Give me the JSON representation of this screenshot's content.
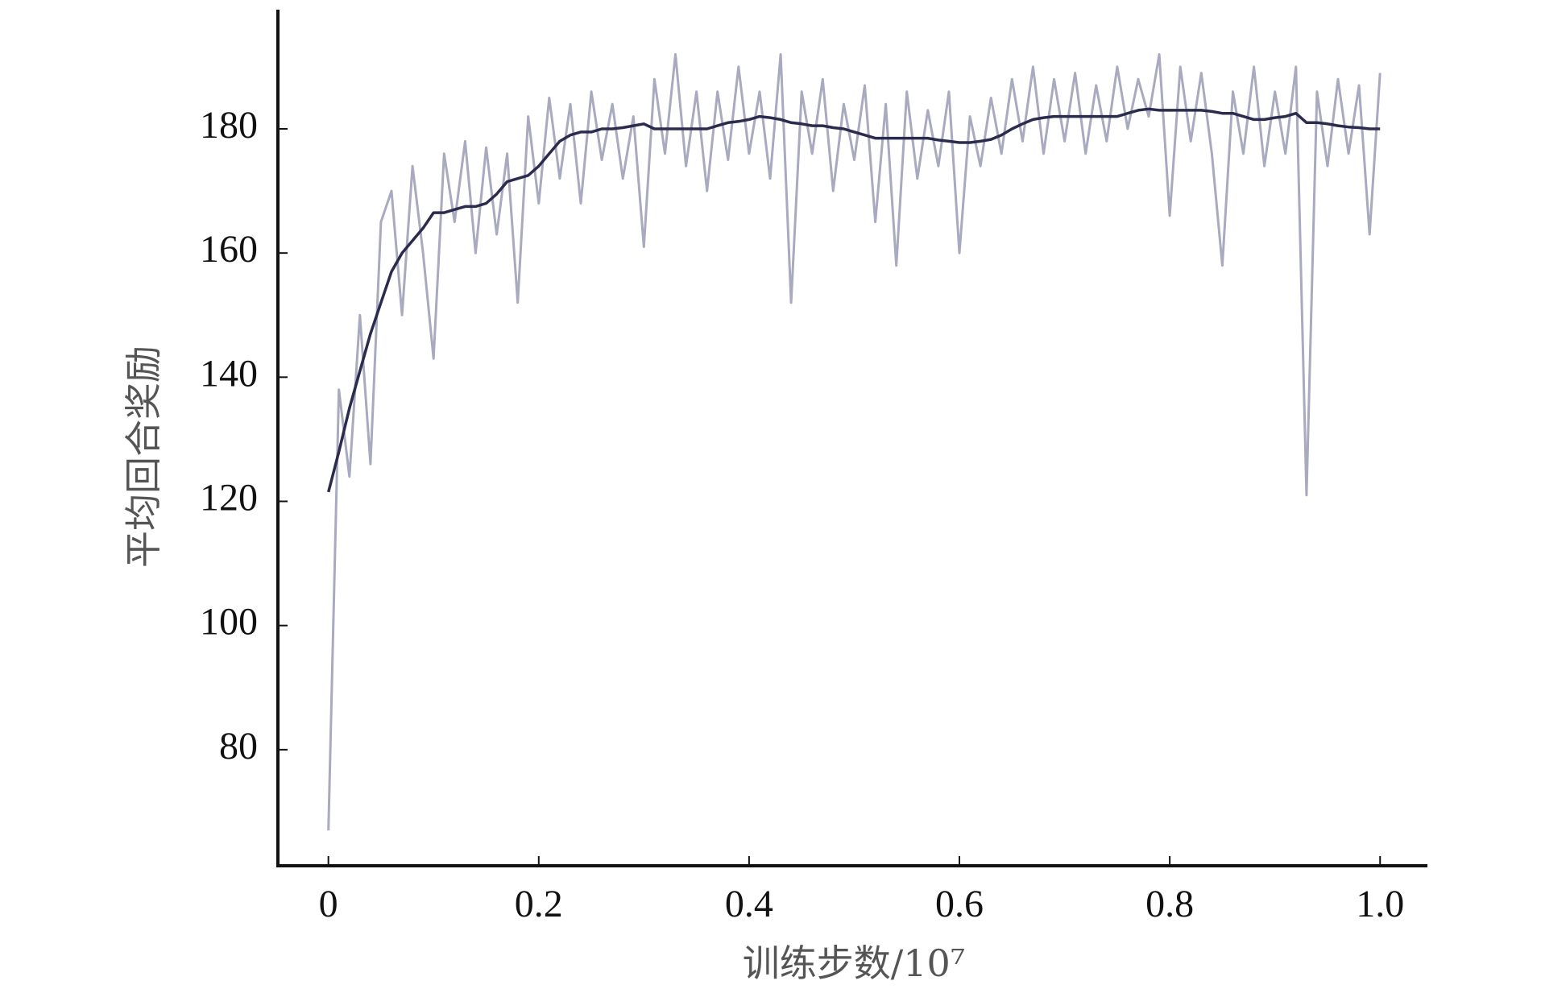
{
  "chart_data": {
    "type": "line",
    "xlabel": "训练步数/10⁷",
    "ylabel": "平均回合奖励",
    "x": [
      0,
      0.01,
      0.02,
      0.03,
      0.04,
      0.05,
      0.06,
      0.07,
      0.08,
      0.09,
      0.1,
      0.11,
      0.12,
      0.13,
      0.14,
      0.15,
      0.16,
      0.17,
      0.18,
      0.19,
      0.2,
      0.21,
      0.22,
      0.23,
      0.24,
      0.25,
      0.26,
      0.27,
      0.28,
      0.29,
      0.3,
      0.31,
      0.32,
      0.33,
      0.34,
      0.35,
      0.36,
      0.37,
      0.38,
      0.39,
      0.4,
      0.41,
      0.42,
      0.43,
      0.44,
      0.45,
      0.46,
      0.47,
      0.48,
      0.49,
      0.5,
      0.51,
      0.52,
      0.53,
      0.54,
      0.55,
      0.56,
      0.57,
      0.58,
      0.59,
      0.6,
      0.61,
      0.62,
      0.63,
      0.64,
      0.65,
      0.66,
      0.67,
      0.68,
      0.69,
      0.7,
      0.71,
      0.72,
      0.73,
      0.74,
      0.75,
      0.76,
      0.77,
      0.78,
      0.79,
      0.8,
      0.81,
      0.82,
      0.83,
      0.84,
      0.85,
      0.86,
      0.87,
      0.88,
      0.89,
      0.9,
      0.91,
      0.92,
      0.93,
      0.94,
      0.95,
      0.96,
      0.97,
      0.98,
      0.99,
      1
    ],
    "series": [
      {
        "color": "#a9a9bf",
        "values": [
          67,
          138,
          124,
          150,
          126,
          165,
          170,
          150,
          174,
          160,
          143,
          176,
          165,
          178,
          160,
          177,
          163,
          176,
          152,
          182,
          168,
          185,
          172,
          184,
          168,
          186,
          175,
          184,
          172,
          182,
          161,
          188,
          176,
          192,
          174,
          186,
          170,
          186,
          175,
          190,
          176,
          186,
          172,
          192,
          152,
          186,
          176,
          188,
          170,
          184,
          175,
          187,
          165,
          184,
          158,
          186,
          172,
          183,
          174,
          186,
          160,
          182,
          174,
          185,
          176,
          188,
          178,
          190,
          176,
          188,
          178,
          189,
          176,
          187,
          178,
          190,
          180,
          188,
          182,
          192,
          166,
          190,
          178,
          189,
          176,
          158,
          186,
          176,
          190,
          174,
          186,
          176,
          190,
          121,
          186,
          174,
          188,
          176,
          187,
          163,
          189
        ]
      },
      {
        "color": "#2b2b4e",
        "values": [
          121.5,
          128,
          135,
          141,
          147,
          152,
          157,
          160,
          162,
          164,
          166.5,
          166.5,
          167,
          167.5,
          167.5,
          168,
          169.5,
          171.5,
          172,
          172.5,
          174,
          176,
          178,
          179,
          179.5,
          179.5,
          180,
          180,
          180.2,
          180.5,
          180.8,
          180,
          180,
          180,
          180,
          180,
          180,
          180.5,
          181,
          181.2,
          181.5,
          182,
          181.8,
          181.5,
          181,
          180.8,
          180.5,
          180.5,
          180.2,
          180,
          179.5,
          179,
          178.5,
          178.5,
          178.5,
          178.5,
          178.5,
          178.5,
          178.2,
          178,
          177.8,
          177.8,
          178,
          178.3,
          179,
          180,
          180.8,
          181.5,
          181.8,
          182,
          182,
          182,
          182,
          182,
          182,
          182,
          182.5,
          183,
          183.2,
          183,
          183,
          183,
          183,
          183,
          182.8,
          182.5,
          182.5,
          182,
          181.5,
          181.5,
          181.8,
          182,
          182.5,
          181,
          181,
          180.8,
          180.5,
          180.3,
          180.2,
          180,
          180
        ]
      }
    ],
    "xlim": [
      -0.048,
      1.045
    ],
    "ylim": [
      61.3,
      199.2
    ],
    "xticks": [
      0,
      0.2,
      0.4,
      0.6,
      0.8,
      {
        "value": 1,
        "label": "1.0"
      }
    ],
    "yticks": [
      80,
      100,
      120,
      140,
      160,
      180
    ]
  }
}
